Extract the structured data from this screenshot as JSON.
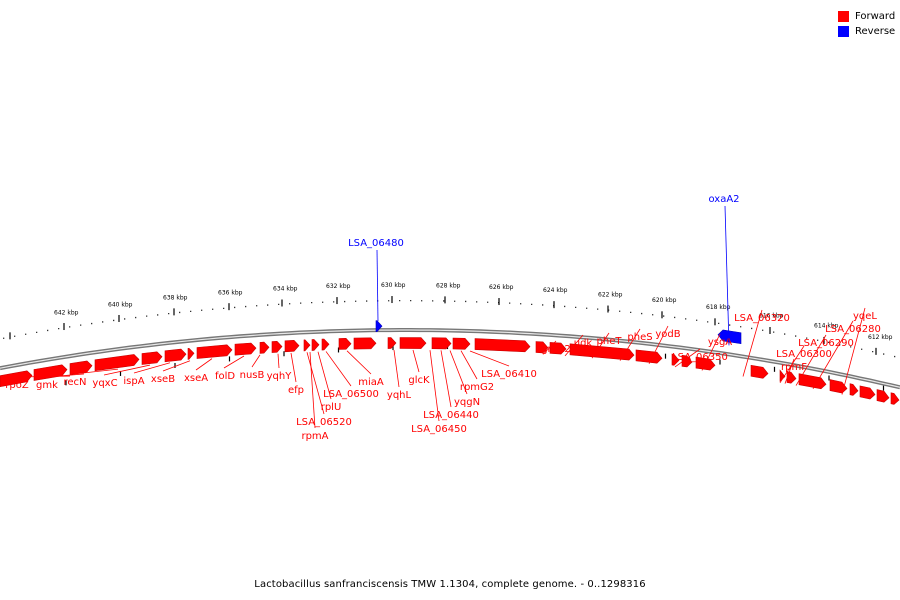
{
  "legend": {
    "forward_label": "Forward",
    "reverse_label": "Reverse",
    "forward_color": "#ff0000",
    "reverse_color": "#0000ff"
  },
  "caption": "Lactobacillus sanfranciscensis TMW 1.1304, complete genome. - 0..1298316",
  "ticks": [
    "642 kbp",
    "640 kbp",
    "638 kbp",
    "636 kbp",
    "634 kbp",
    "632 kbp",
    "630 kbp",
    "628 kbp",
    "626 kbp",
    "624 kbp",
    "622 kbp",
    "620 kbp",
    "618 kbp",
    "616 kbp",
    "614 kbp",
    "612 kbp"
  ],
  "genes_reverse": [
    "LSA_06480",
    "oxaA2"
  ],
  "genes_forward": [
    "rpoZ",
    "gmk",
    "recN",
    "yqxC",
    "ispA",
    "xseB",
    "xseA",
    "folD",
    "nusB",
    "yqhY",
    "efp",
    "LSA_06520",
    "rpmA",
    "rplU",
    "LSA_06500",
    "miaA",
    "yqhL",
    "glcK",
    "LSA_06450",
    "LSA_06440",
    "yqgN",
    "rpmG2",
    "LSA_06410",
    "greA2",
    "udk",
    "pheT",
    "pheS",
    "yodB",
    "LSA_06350",
    "ysgA",
    "LSA_06320",
    "LSA_06300",
    "rpmF",
    "LSA_06290",
    "LSA_06280",
    "yqeL"
  ]
}
